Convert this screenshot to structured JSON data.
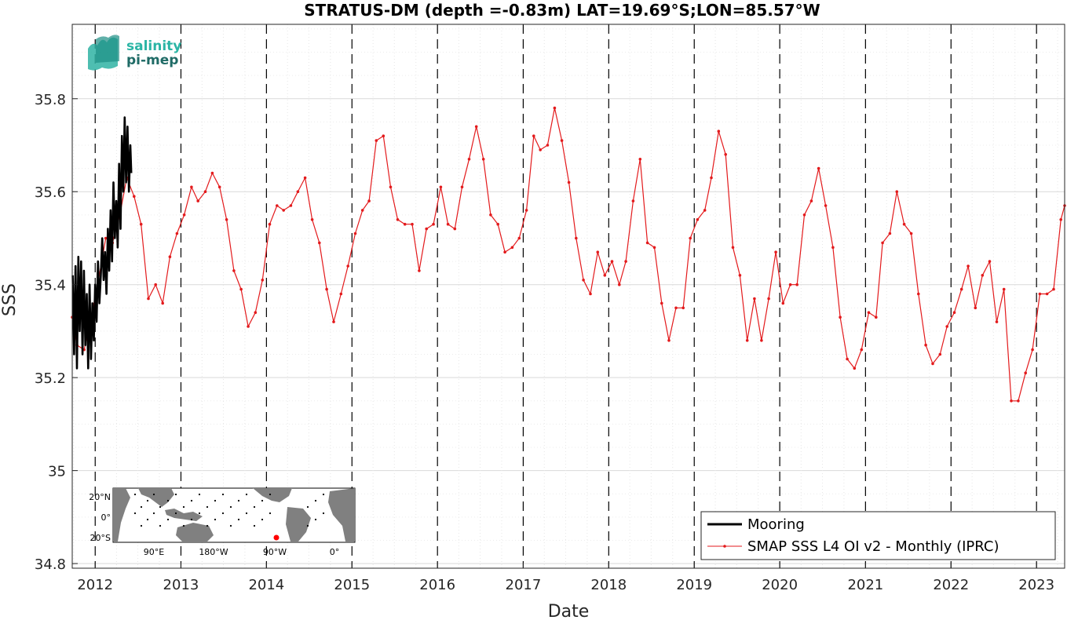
{
  "chart_data": {
    "type": "line",
    "title": "STRATUS-DM (depth =-0.83m) LAT=19.69°S;LON=85.57°W",
    "xlabel": "Date",
    "ylabel": "SSS",
    "xlim": [
      "2011-09-25",
      "2023-05-01"
    ],
    "ylim": [
      34.79,
      35.96
    ],
    "yticks": [
      "34.8",
      "35",
      "35.2",
      "35.4",
      "35.6",
      "35.8"
    ],
    "xticks": [
      "2012",
      "2013",
      "2014",
      "2015",
      "2016",
      "2017",
      "2018",
      "2019",
      "2020",
      "2021",
      "2022",
      "2023"
    ],
    "grid": true,
    "year_markers": "dashed vertical lines at each January 1",
    "legend_position": "bottom-right",
    "series": [
      {
        "name": "Mooring",
        "color": "#000000",
        "style": "thick line",
        "x": [
          "2011-09-27",
          "2011-10-03",
          "2011-10-09",
          "2011-10-15",
          "2011-10-21",
          "2011-10-27",
          "2011-11-02",
          "2011-11-08",
          "2011-11-14",
          "2011-11-20",
          "2011-11-26",
          "2011-12-02",
          "2011-12-08",
          "2011-12-14",
          "2011-12-20",
          "2011-12-26",
          "2012-01-01",
          "2012-01-07",
          "2012-01-13",
          "2012-01-19",
          "2012-01-25",
          "2012-01-31",
          "2012-02-06",
          "2012-02-12",
          "2012-02-18",
          "2012-02-24",
          "2012-03-01",
          "2012-03-07",
          "2012-03-13",
          "2012-03-19",
          "2012-03-25",
          "2012-03-31",
          "2012-04-06",
          "2012-04-12",
          "2012-04-18",
          "2012-04-24",
          "2012-04-30",
          "2012-05-06",
          "2012-05-12",
          "2012-05-18",
          "2012-05-24",
          "2012-05-30",
          "2012-06-03"
        ],
        "y": [
          35.42,
          35.25,
          35.44,
          35.22,
          35.46,
          35.3,
          35.45,
          35.25,
          35.43,
          35.27,
          35.38,
          35.22,
          35.4,
          35.24,
          35.36,
          35.28,
          35.4,
          35.32,
          35.45,
          35.36,
          35.42,
          35.5,
          35.41,
          35.47,
          35.38,
          35.52,
          35.43,
          35.56,
          35.45,
          35.62,
          35.5,
          35.58,
          35.48,
          35.66,
          35.52,
          35.72,
          35.6,
          35.76,
          35.62,
          35.74,
          35.6,
          35.7,
          35.64
        ]
      },
      {
        "name": "SMAP SSS L4 OI v2 - Monthly (IPRC)",
        "color": "#e31a1c",
        "style": "thin line with dot markers",
        "x": [
          "2011-09-25",
          "2011-10-15",
          "2011-11-15",
          "2011-12-15",
          "2012-01-15",
          "2012-02-15",
          "2012-03-15",
          "2012-04-15",
          "2012-05-15",
          "2012-06-15",
          "2012-07-15",
          "2012-08-15",
          "2012-09-15",
          "2012-10-15",
          "2012-11-15",
          "2012-12-15",
          "2013-01-15",
          "2013-02-15",
          "2013-03-15",
          "2013-04-15",
          "2013-05-15",
          "2013-06-15",
          "2013-07-15",
          "2013-08-15",
          "2013-09-15",
          "2013-10-15",
          "2013-11-15",
          "2013-12-15",
          "2014-01-15",
          "2014-02-15",
          "2014-03-15",
          "2014-04-15",
          "2014-05-15",
          "2014-06-15",
          "2014-07-15",
          "2014-08-15",
          "2014-09-15",
          "2014-10-15",
          "2014-11-15",
          "2014-12-15",
          "2015-01-15",
          "2015-02-15",
          "2015-03-15",
          "2015-04-15",
          "2015-05-15",
          "2015-06-15",
          "2015-07-15",
          "2015-08-15",
          "2015-09-15",
          "2015-10-15",
          "2015-11-15",
          "2015-12-15",
          "2016-01-15",
          "2016-02-15",
          "2016-03-15",
          "2016-04-15",
          "2016-05-15",
          "2016-06-15",
          "2016-07-15",
          "2016-08-15",
          "2016-09-15",
          "2016-10-15",
          "2016-11-15",
          "2016-12-15",
          "2017-01-15",
          "2017-02-15",
          "2017-03-15",
          "2017-04-15",
          "2017-05-15",
          "2017-06-15",
          "2017-07-15",
          "2017-08-15",
          "2017-09-15",
          "2017-10-15",
          "2017-11-15",
          "2017-12-15",
          "2018-01-15",
          "2018-02-15",
          "2018-03-15",
          "2018-04-15",
          "2018-05-15",
          "2018-06-15",
          "2018-07-15",
          "2018-08-15",
          "2018-09-15",
          "2018-10-15",
          "2018-11-15",
          "2018-12-15",
          "2019-01-15",
          "2019-02-15",
          "2019-03-15",
          "2019-04-15",
          "2019-05-15",
          "2019-06-15",
          "2019-07-15",
          "2019-08-15",
          "2019-09-15",
          "2019-10-15",
          "2019-11-15",
          "2019-12-15",
          "2020-01-15",
          "2020-02-15",
          "2020-03-15",
          "2020-04-15",
          "2020-05-15",
          "2020-06-15",
          "2020-07-15",
          "2020-08-15",
          "2020-09-15",
          "2020-10-15",
          "2020-11-15",
          "2020-12-15",
          "2021-01-15",
          "2021-02-15",
          "2021-03-15",
          "2021-04-15",
          "2021-05-15",
          "2021-06-15",
          "2021-07-15",
          "2021-08-15",
          "2021-09-15",
          "2021-10-15",
          "2021-11-15",
          "2021-12-15",
          "2022-01-15",
          "2022-02-15",
          "2022-03-15",
          "2022-04-15",
          "2022-05-15",
          "2022-06-15",
          "2022-07-15",
          "2022-08-15",
          "2022-09-15",
          "2022-10-15",
          "2022-11-15",
          "2022-12-15",
          "2023-01-15",
          "2023-02-15",
          "2023-03-15",
          "2023-04-15",
          "2023-05-01"
        ],
        "y": [
          35.33,
          35.27,
          35.26,
          35.33,
          35.41,
          35.5,
          35.49,
          35.55,
          35.63,
          35.59,
          35.53,
          35.37,
          35.4,
          35.36,
          35.46,
          35.51,
          35.55,
          35.61,
          35.58,
          35.6,
          35.64,
          35.61,
          35.54,
          35.43,
          35.39,
          35.31,
          35.34,
          35.41,
          35.53,
          35.57,
          35.56,
          35.57,
          35.6,
          35.63,
          35.54,
          35.49,
          35.39,
          35.32,
          35.38,
          35.44,
          35.51,
          35.56,
          35.58,
          35.71,
          35.72,
          35.61,
          35.54,
          35.53,
          35.53,
          35.43,
          35.52,
          35.53,
          35.61,
          35.53,
          35.52,
          35.61,
          35.67,
          35.74,
          35.67,
          35.55,
          35.53,
          35.47,
          35.48,
          35.5,
          35.56,
          35.72,
          35.69,
          35.7,
          35.78,
          35.71,
          35.62,
          35.5,
          35.41,
          35.38,
          35.47,
          35.42,
          35.45,
          35.4,
          35.45,
          35.58,
          35.67,
          35.49,
          35.48,
          35.36,
          35.28,
          35.35,
          35.35,
          35.5,
          35.54,
          35.56,
          35.63,
          35.73,
          35.68,
          35.48,
          35.42,
          35.28,
          35.37,
          35.28,
          35.37,
          35.47,
          35.36,
          35.4,
          35.4,
          35.55,
          35.58,
          35.65,
          35.57,
          35.48,
          35.33,
          35.24,
          35.22,
          35.26,
          35.34,
          35.33,
          35.49,
          35.51,
          35.6,
          35.53,
          35.51,
          35.38,
          35.27,
          35.23,
          35.25,
          35.31,
          35.34,
          35.39,
          35.44,
          35.35,
          35.42,
          35.45,
          35.32,
          35.39,
          35.15,
          35.15,
          35.21,
          35.26,
          35.38,
          35.38,
          35.39,
          35.54,
          35.57
        ]
      }
    ]
  },
  "logo": {
    "line1": "salinity",
    "line2": "pi-mep"
  },
  "inset_map": {
    "lat_labels": [
      "20°N",
      "0°",
      "20°S"
    ],
    "lon_labels": [
      "90°E",
      "180°W",
      "90°W",
      "0°"
    ],
    "marker_color": "#ff0000",
    "land_color": "#808080"
  }
}
